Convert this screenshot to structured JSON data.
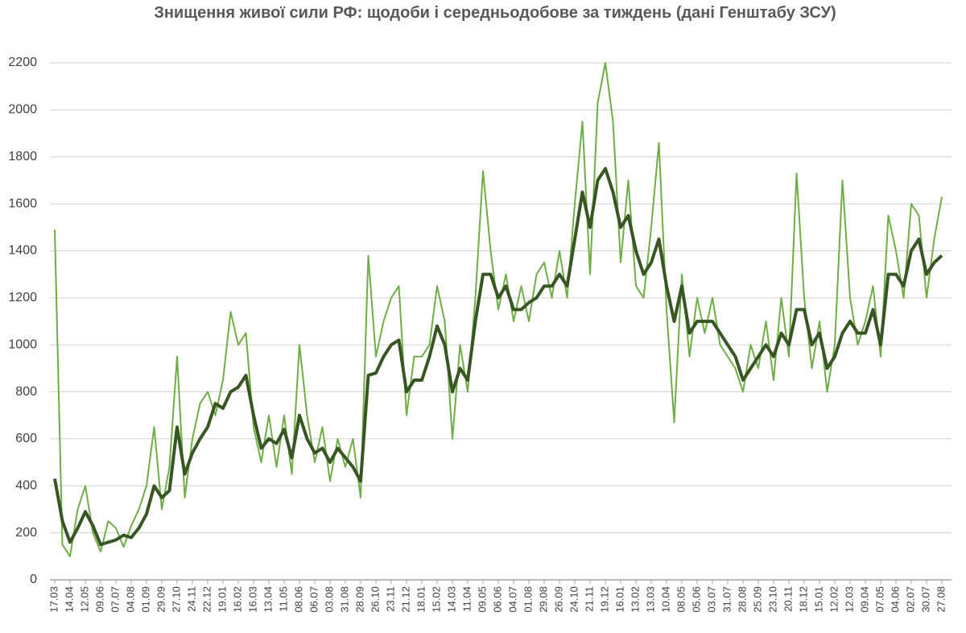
{
  "chart_data": {
    "type": "line",
    "title": "Знищення живої сили РФ: щодоби і середньодобове за тиждень (дані Генштабу ЗСУ)",
    "categories": [
      "17.03",
      null,
      "14.04",
      null,
      "12.05",
      null,
      "09.06",
      null,
      "07.07",
      null,
      "04.08",
      null,
      "01.09",
      null,
      "29.09",
      null,
      "27.10",
      null,
      "24.11",
      null,
      "22.12",
      null,
      "19.01",
      null,
      "16.02",
      null,
      "16.03",
      null,
      "13.04",
      null,
      "11.05",
      null,
      "08.06",
      null,
      "06.07",
      null,
      "03.08",
      null,
      "31.08",
      null,
      "28.09",
      null,
      "26.10",
      null,
      "23.11",
      null,
      "21.12",
      null,
      "18.01",
      null,
      "15.02",
      null,
      "14.03",
      null,
      "11.04",
      null,
      "09.05",
      null,
      "06.06",
      null,
      "04.07",
      null,
      "01.08",
      null,
      "29.08",
      null,
      "26.09",
      null,
      "24.10",
      null,
      "21.11",
      null,
      "19.12",
      null,
      "16.01",
      null,
      "13.02",
      null,
      "13.03",
      null,
      "10.04",
      null,
      "08.05",
      null,
      "05.06",
      null,
      "03.07",
      null,
      "31.07",
      null,
      "28.08",
      null,
      "25.09",
      null,
      "23.10",
      null,
      "20.11",
      null,
      "18.12",
      null,
      "15.01",
      null,
      "12.02",
      null,
      "12.03",
      null,
      "09.04",
      null,
      "07.05",
      null,
      "04.06",
      null,
      "02.07",
      null,
      "30.07",
      null,
      "27.08"
    ],
    "series": [
      {
        "color": "#70ad47",
        "values": [
          1490,
          150,
          100,
          300,
          400,
          200,
          120,
          250,
          220,
          140,
          230,
          300,
          400,
          650,
          300,
          480,
          950,
          350,
          600,
          750,
          800,
          700,
          850,
          1140,
          1000,
          1050,
          650,
          500,
          700,
          480,
          700,
          450,
          1000,
          700,
          500,
          650,
          420,
          600,
          480,
          600,
          350,
          1380,
          950,
          1100,
          1200,
          1250,
          700,
          950,
          950,
          1000,
          1250,
          1100,
          600,
          1000,
          800,
          1200,
          1740,
          1400,
          1150,
          1300,
          1100,
          1250,
          1100,
          1300,
          1350,
          1200,
          1400,
          1200,
          1600,
          1950,
          1300,
          2030,
          2200,
          1950,
          1350,
          1700,
          1250,
          1200,
          1500,
          1860,
          1150,
          670,
          1300,
          950,
          1200,
          1050,
          1200,
          1000,
          950,
          900,
          800,
          1000,
          900,
          1100,
          850,
          1200,
          950,
          1730,
          1200,
          900,
          1100,
          800,
          1000,
          1700,
          1200,
          1000,
          1100,
          1250,
          950,
          1550,
          1400,
          1200,
          1600,
          1550,
          1200,
          1450,
          1630
        ]
      },
      {
        "color": "#375623",
        "values": [
          430,
          250,
          160,
          220,
          290,
          230,
          150,
          160,
          170,
          190,
          180,
          220,
          280,
          400,
          350,
          380,
          650,
          450,
          540,
          600,
          650,
          750,
          730,
          800,
          820,
          870,
          700,
          560,
          600,
          580,
          640,
          520,
          700,
          600,
          540,
          560,
          500,
          560,
          520,
          480,
          420,
          870,
          880,
          950,
          1000,
          1020,
          800,
          850,
          850,
          950,
          1080,
          1000,
          800,
          900,
          850,
          1100,
          1300,
          1300,
          1200,
          1250,
          1150,
          1150,
          1180,
          1200,
          1250,
          1250,
          1300,
          1250,
          1450,
          1650,
          1500,
          1700,
          1750,
          1650,
          1500,
          1550,
          1400,
          1300,
          1350,
          1450,
          1250,
          1100,
          1250,
          1050,
          1100,
          1100,
          1100,
          1050,
          1000,
          950,
          850,
          900,
          950,
          1000,
          950,
          1050,
          1000,
          1150,
          1150,
          1000,
          1050,
          900,
          950,
          1050,
          1100,
          1050,
          1050,
          1150,
          1000,
          1300,
          1300,
          1250,
          1400,
          1450,
          1300,
          1350,
          1380
        ]
      }
    ],
    "ylim": [
      0,
      2200
    ],
    "yticks": [
      0,
      200,
      400,
      600,
      800,
      1000,
      1200,
      1400,
      1600,
      1800,
      2000,
      2200
    ],
    "grid": true
  }
}
